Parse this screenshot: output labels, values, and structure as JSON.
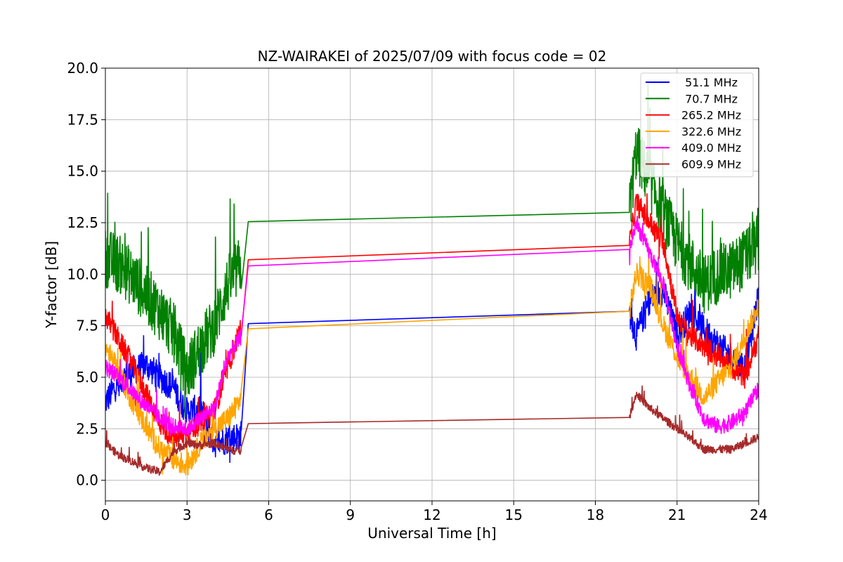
{
  "chart_data": {
    "type": "line",
    "title": "NZ-WAIRAKEI of 2025/07/09 with focus code = 02",
    "xlabel": "Universal Time [h]",
    "ylabel": "Y-factor [dB]",
    "xlim": [
      0,
      24
    ],
    "ylim": [
      -1,
      20
    ],
    "xticks": [
      0,
      3,
      6,
      9,
      12,
      15,
      18,
      21,
      24
    ],
    "xtick_labels": [
      "0",
      "3",
      "6",
      "9",
      "12",
      "15",
      "18",
      "21",
      "24"
    ],
    "yticks": [
      0,
      2.5,
      5,
      7.5,
      10,
      12.5,
      15,
      17.5,
      20
    ],
    "ytick_labels": [
      "0.0",
      "2.5",
      "5.0",
      "7.5",
      "10.0",
      "12.5",
      "15.0",
      "17.5",
      "20.0"
    ],
    "grid": true,
    "legend_position": "top-right",
    "series": [
      {
        "name": " 51.1 MHz",
        "color": "#0000ff",
        "x": [
          0,
          0.5,
          1,
          1.5,
          2,
          2.5,
          3,
          3.5,
          4,
          4.5,
          5,
          5.25,
          19.25,
          19.5,
          20,
          20.5,
          21,
          21.5,
          22,
          22.5,
          23,
          23.5,
          24
        ],
        "y": [
          3.8,
          4.8,
          5.3,
          5.6,
          5.0,
          4.5,
          3.3,
          3.5,
          1.8,
          2.0,
          2.2,
          7.6,
          8.2,
          7.0,
          8.8,
          9.2,
          7.0,
          8.2,
          7.3,
          6.6,
          6.0,
          5.5,
          9.0
        ],
        "amp": 0.9
      },
      {
        "name": " 70.7 MHz",
        "color": "#008000",
        "x": [
          0,
          0.5,
          1,
          1.5,
          2,
          2.5,
          3,
          3.5,
          4,
          4.5,
          5,
          5.25,
          19.25,
          19.5,
          20,
          20.5,
          21,
          21.5,
          22,
          22.5,
          23,
          23.5,
          24
        ],
        "y": [
          10.8,
          10.5,
          9.8,
          9.0,
          8.2,
          7.2,
          5.2,
          6.5,
          7.5,
          9.5,
          10.5,
          12.55,
          13.0,
          16.0,
          14.5,
          13.0,
          11.5,
          10.5,
          9.5,
          10.0,
          10.2,
          10.8,
          11.5
        ],
        "amp": 1.8
      },
      {
        "name": "265.2 MHz",
        "color": "#ff0000",
        "x": [
          0,
          0.5,
          1,
          1.5,
          2,
          2.5,
          3,
          3.5,
          4,
          4.5,
          5,
          5.25,
          19.25,
          19.5,
          20,
          20.5,
          21,
          21.5,
          22,
          22.5,
          23,
          23.5,
          24
        ],
        "y": [
          8.0,
          6.8,
          5.6,
          4.2,
          2.8,
          2.0,
          2.3,
          2.8,
          3.4,
          5.5,
          7.5,
          10.7,
          11.4,
          13.5,
          12.5,
          11.5,
          8.0,
          7.0,
          6.5,
          6.0,
          5.5,
          5.0,
          7.0
        ],
        "amp": 0.7
      },
      {
        "name": "322.6 MHz",
        "color": "#ffa500",
        "x": [
          0,
          0.5,
          1,
          1.5,
          2,
          2.5,
          3,
          3.5,
          4,
          4.5,
          5,
          5.25,
          19.25,
          19.5,
          20,
          20.5,
          21,
          21.5,
          22,
          22.5,
          23,
          23.5,
          24
        ],
        "y": [
          6.5,
          5.2,
          3.8,
          2.6,
          1.5,
          1.0,
          0.7,
          1.8,
          2.5,
          3.0,
          4.0,
          7.35,
          8.2,
          10.0,
          9.5,
          7.5,
          6.0,
          5.0,
          4.0,
          4.8,
          5.5,
          7.0,
          8.5
        ],
        "amp": 0.7
      },
      {
        "name": "409.0 MHz",
        "color": "#ff00ff",
        "x": [
          0,
          0.5,
          1,
          1.5,
          2,
          2.5,
          3,
          3.5,
          4,
          4.5,
          5,
          5.25,
          19.25,
          19.5,
          20,
          20.5,
          21,
          21.5,
          22,
          22.5,
          23,
          23.5,
          24
        ],
        "y": [
          5.5,
          5.0,
          4.3,
          3.6,
          3.0,
          2.6,
          2.5,
          3.0,
          3.5,
          6.0,
          7.0,
          10.4,
          11.2,
          12.5,
          11.0,
          9.5,
          6.5,
          4.5,
          3.0,
          2.6,
          2.8,
          3.3,
          4.5
        ],
        "amp": 0.5
      },
      {
        "name": "609.9 MHz",
        "color": "#a52a2a",
        "x": [
          0,
          0.5,
          1,
          1.5,
          2,
          2.5,
          3,
          3.5,
          4,
          4.5,
          5,
          5.25,
          19.25,
          19.5,
          20,
          20.5,
          21,
          21.5,
          22,
          22.5,
          23,
          23.5,
          24
        ],
        "y": [
          1.8,
          1.2,
          0.9,
          0.6,
          0.4,
          1.4,
          1.8,
          1.7,
          1.8,
          1.5,
          1.4,
          2.75,
          3.05,
          4.2,
          3.5,
          3.0,
          2.5,
          2.0,
          1.5,
          1.5,
          1.5,
          1.8,
          2.1
        ],
        "amp": 0.25
      }
    ]
  }
}
